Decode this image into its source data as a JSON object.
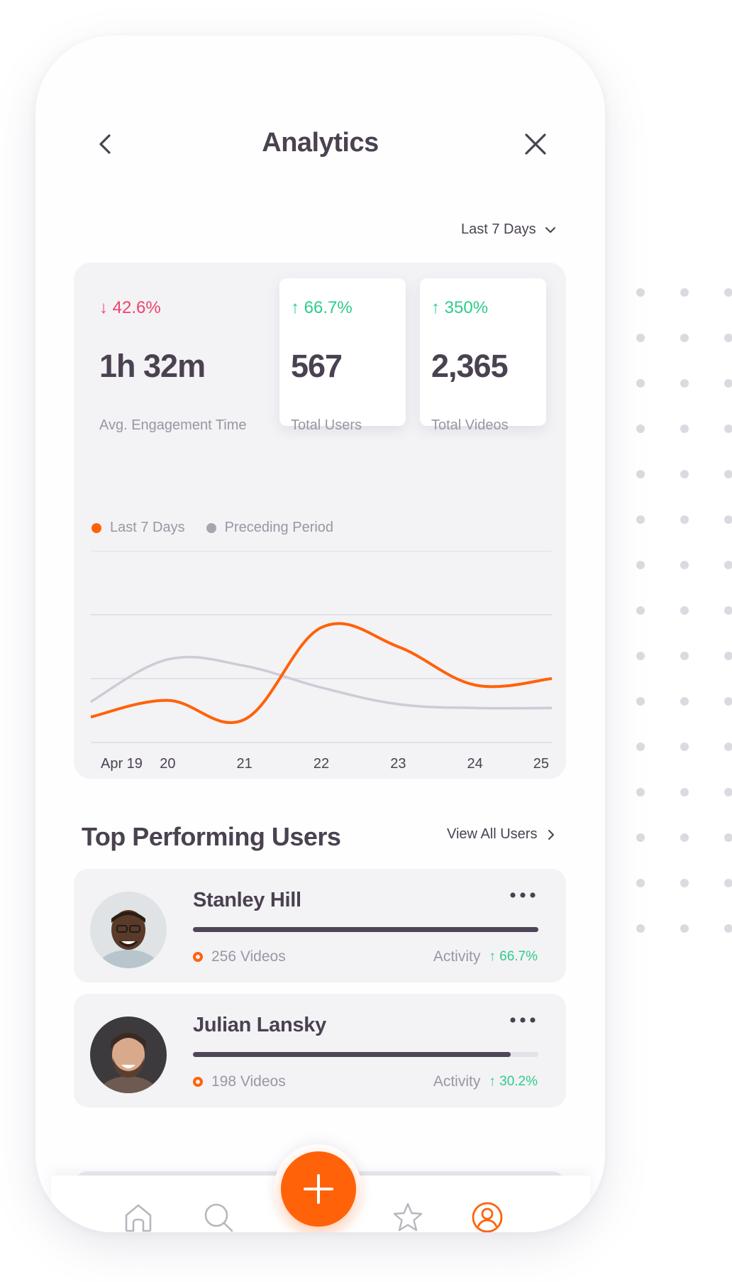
{
  "header": {
    "title": "Analytics"
  },
  "range_selector": {
    "label": "Last 7 Days"
  },
  "stats": [
    {
      "change": "↓ 42.6%",
      "direction": "down",
      "value": "1h 32m",
      "label": "Avg. Engagement Time"
    },
    {
      "change": "↑ 66.7%",
      "direction": "up",
      "value": "567",
      "label": "Total Users"
    },
    {
      "change": "↑ 350%",
      "direction": "up",
      "value": "2,365",
      "label": "Total Videos"
    }
  ],
  "chart_data": {
    "type": "line",
    "categories": [
      "Apr 19",
      "20",
      "21",
      "22",
      "23",
      "24",
      "25"
    ],
    "series": [
      {
        "name": "Last 7 Days",
        "color": "#ff6209",
        "values": [
          20,
          33,
          18,
          90,
          75,
          45,
          50
        ]
      },
      {
        "name": "Preceding Period",
        "color": "#cfcbd6",
        "values": [
          32,
          65,
          60,
          43,
          30,
          27,
          27
        ]
      }
    ],
    "ylim": [
      0,
      150
    ],
    "grid": true,
    "legend": "top-left"
  },
  "colors": {
    "accent": "#ff6209",
    "up": "#2ecc8a",
    "down": "#f0426b",
    "text": "#4a4250",
    "muted": "#9b96a3"
  },
  "top_users": {
    "title": "Top Performing Users",
    "view_all_label": "View All Users",
    "users": [
      {
        "name": "Stanley Hill",
        "videos": "256 Videos",
        "activity_label": "Activity",
        "activity_change": "↑ 66.7%",
        "progress": 1.0
      },
      {
        "name": "Julian Lansky",
        "videos": "198 Videos",
        "activity_label": "Activity",
        "activity_change": "↑ 30.2%",
        "progress": 0.92
      }
    ]
  },
  "tab_bar": {
    "icons": [
      "home-icon",
      "search-icon",
      "plus-icon",
      "star-icon",
      "user-icon"
    ],
    "active": "user-icon"
  }
}
